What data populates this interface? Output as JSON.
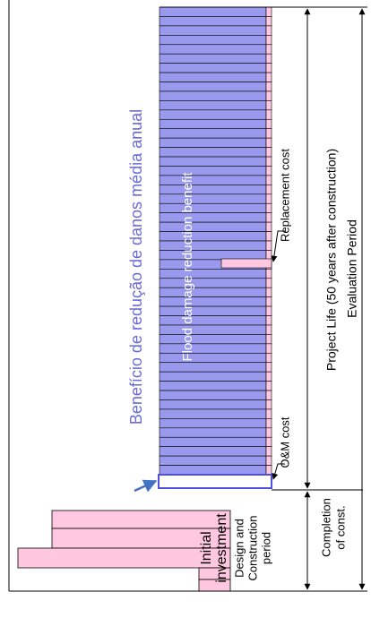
{
  "labels": {
    "benefit_pt": "Benefício de redução de danos média anual",
    "benefit_en": "Flood damage reduction benefit",
    "replacement": "Replacement cost",
    "om": "O&M cost",
    "project_life": "Project Life (50 years after construction)",
    "evaluation": "Evaluation Period",
    "completion": [
      "Completion",
      "of const."
    ],
    "design": [
      "Design and",
      "Construction",
      "period"
    ],
    "initial": [
      "Initial",
      "investment"
    ]
  }
}
